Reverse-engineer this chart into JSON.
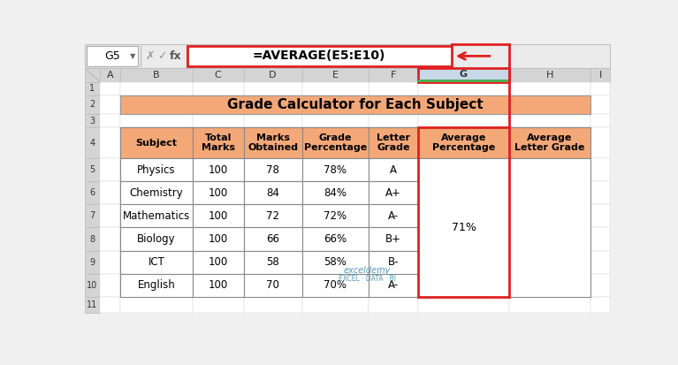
{
  "title": "Grade Calculator for Each Subject",
  "title_bg": "#F4A878",
  "formula_bar_text": "=AVERAGE(E5:E10)",
  "cell_ref": "G5",
  "header_bg": "#F4A878",
  "header_cols": [
    "Subject",
    "Total\nMarks",
    "Marks\nObtained",
    "Grade\nPercentage",
    "Letter\nGrade",
    "Average\nPercentage",
    "Average\nLetter Grade"
  ],
  "col_letters": [
    "A",
    "B",
    "C",
    "D",
    "E",
    "F",
    "G",
    "H",
    "I"
  ],
  "rows": [
    [
      "Physics",
      "100",
      "78",
      "78%",
      "A"
    ],
    [
      "Chemistry",
      "100",
      "84",
      "84%",
      "A+"
    ],
    [
      "Mathematics",
      "100",
      "72",
      "72%",
      "A-"
    ],
    [
      "Biology",
      "100",
      "66",
      "66%",
      "B+"
    ],
    [
      "ICT",
      "100",
      "58",
      "58%",
      "B-"
    ],
    [
      "English",
      "100",
      "70",
      "70%",
      "A-"
    ]
  ],
  "avg_percentage": "71%",
  "excel_header_bg": "#D4D4D4",
  "selected_col_bg": "#C8D8E8",
  "red_color": "#E02020",
  "fig_bg": "#F0F0F0",
  "white": "#FFFFFF",
  "table_border": "#888888",
  "cell_border": "#AAAAAA",
  "green_bar": "#4CAF50",
  "watermark_color": "#5599BB"
}
